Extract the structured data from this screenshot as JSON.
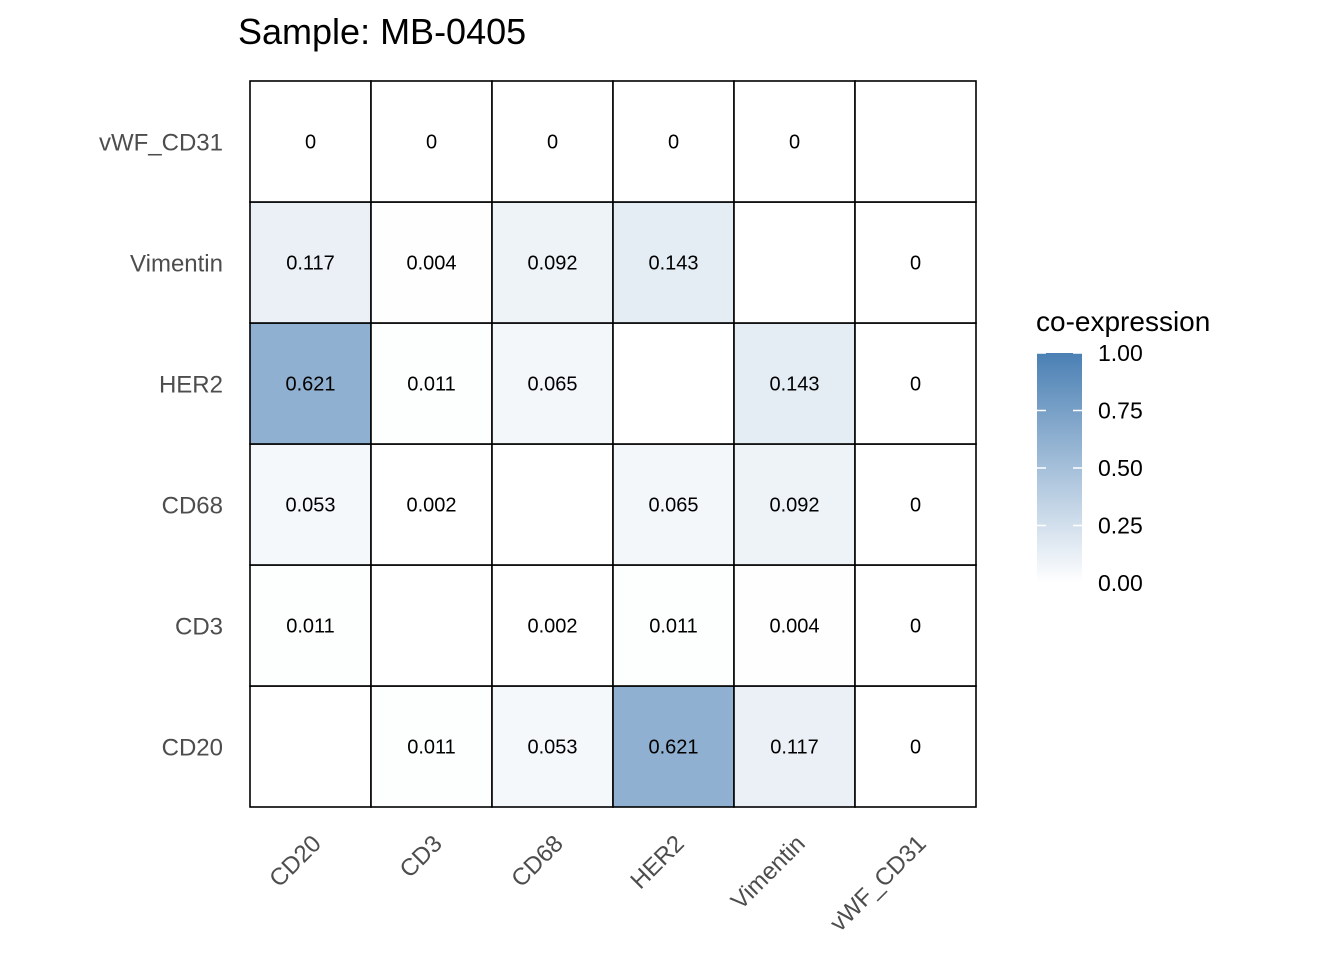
{
  "chart_data": {
    "type": "heatmap",
    "title": "Sample: MB-0405",
    "x_categories": [
      "CD20",
      "CD3",
      "CD68",
      "HER2",
      "Vimentin",
      "vWF_CD31"
    ],
    "y_categories": [
      "CD20",
      "CD3",
      "CD68",
      "HER2",
      "Vimentin",
      "vWF_CD31"
    ],
    "cells": [
      {
        "x": "CD3",
        "y": "CD20",
        "value": 0.011,
        "label": "0.011"
      },
      {
        "x": "CD68",
        "y": "CD20",
        "value": 0.053,
        "label": "0.053"
      },
      {
        "x": "HER2",
        "y": "CD20",
        "value": 0.621,
        "label": "0.621"
      },
      {
        "x": "Vimentin",
        "y": "CD20",
        "value": 0.117,
        "label": "0.117"
      },
      {
        "x": "vWF_CD31",
        "y": "CD20",
        "value": 0,
        "label": "0"
      },
      {
        "x": "CD20",
        "y": "CD3",
        "value": 0.011,
        "label": "0.011"
      },
      {
        "x": "CD68",
        "y": "CD3",
        "value": 0.002,
        "label": "0.002"
      },
      {
        "x": "HER2",
        "y": "CD3",
        "value": 0.011,
        "label": "0.011"
      },
      {
        "x": "Vimentin",
        "y": "CD3",
        "value": 0.004,
        "label": "0.004"
      },
      {
        "x": "vWF_CD31",
        "y": "CD3",
        "value": 0,
        "label": "0"
      },
      {
        "x": "CD20",
        "y": "CD68",
        "value": 0.053,
        "label": "0.053"
      },
      {
        "x": "CD3",
        "y": "CD68",
        "value": 0.002,
        "label": "0.002"
      },
      {
        "x": "HER2",
        "y": "CD68",
        "value": 0.065,
        "label": "0.065"
      },
      {
        "x": "Vimentin",
        "y": "CD68",
        "value": 0.092,
        "label": "0.092"
      },
      {
        "x": "vWF_CD31",
        "y": "CD68",
        "value": 0,
        "label": "0"
      },
      {
        "x": "CD20",
        "y": "HER2",
        "value": 0.621,
        "label": "0.621"
      },
      {
        "x": "CD3",
        "y": "HER2",
        "value": 0.011,
        "label": "0.011"
      },
      {
        "x": "CD68",
        "y": "HER2",
        "value": 0.065,
        "label": "0.065"
      },
      {
        "x": "Vimentin",
        "y": "HER2",
        "value": 0.143,
        "label": "0.143"
      },
      {
        "x": "vWF_CD31",
        "y": "HER2",
        "value": 0,
        "label": "0"
      },
      {
        "x": "CD20",
        "y": "Vimentin",
        "value": 0.117,
        "label": "0.117"
      },
      {
        "x": "CD3",
        "y": "Vimentin",
        "value": 0.004,
        "label": "0.004"
      },
      {
        "x": "CD68",
        "y": "Vimentin",
        "value": 0.092,
        "label": "0.092"
      },
      {
        "x": "HER2",
        "y": "Vimentin",
        "value": 0.143,
        "label": "0.143"
      },
      {
        "x": "vWF_CD31",
        "y": "Vimentin",
        "value": 0,
        "label": "0"
      },
      {
        "x": "CD20",
        "y": "vWF_CD31",
        "value": 0,
        "label": "0"
      },
      {
        "x": "CD3",
        "y": "vWF_CD31",
        "value": 0,
        "label": "0"
      },
      {
        "x": "CD68",
        "y": "vWF_CD31",
        "value": 0,
        "label": "0"
      },
      {
        "x": "HER2",
        "y": "vWF_CD31",
        "value": 0,
        "label": "0"
      },
      {
        "x": "Vimentin",
        "y": "vWF_CD31",
        "value": 0,
        "label": "0"
      }
    ],
    "legend": {
      "title": "co-expression",
      "placement": "right",
      "ticks": [
        "0.00",
        "0.25",
        "0.50",
        "0.75",
        "1.00"
      ],
      "range": [
        0,
        1
      ],
      "low_color": "#ffffff",
      "high_color": "#4b80b4"
    },
    "grid": false
  }
}
